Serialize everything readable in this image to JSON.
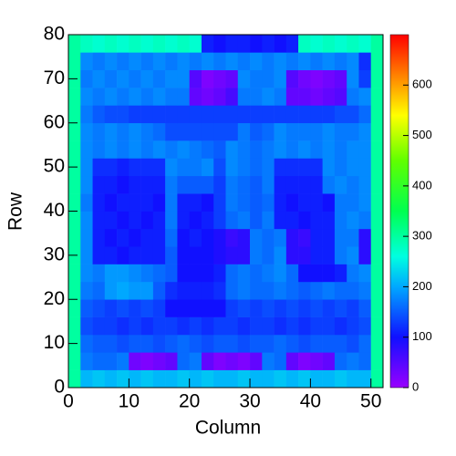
{
  "chart_data": {
    "type": "heatmap",
    "x_label": "Column",
    "y_label": "Row",
    "xbins": [
      0,
      2,
      4,
      6,
      8,
      10,
      12,
      14,
      16,
      18,
      20,
      22,
      24,
      26,
      28,
      30,
      32,
      34,
      36,
      38,
      40,
      42,
      44,
      46,
      48,
      50,
      52
    ],
    "ybins": [
      0,
      4,
      8,
      12,
      16,
      20,
      24,
      28,
      32,
      36,
      40,
      44,
      48,
      52,
      56,
      60,
      64,
      68,
      72,
      76,
      80
    ],
    "xlim": [
      0,
      52
    ],
    "ylim": [
      0,
      80
    ],
    "xticks": [
      0,
      10,
      20,
      30,
      40,
      50
    ],
    "yticks": [
      0,
      10,
      20,
      30,
      40,
      50,
      60,
      70,
      80
    ],
    "zlim": [
      0,
      700
    ],
    "zticks": [
      0,
      100,
      200,
      300,
      400,
      500,
      600
    ],
    "colorscale": [
      [
        0,
        "#9900ff"
      ],
      [
        100,
        "#1010ff"
      ],
      [
        200,
        "#00a8ff"
      ],
      [
        260,
        "#00ffe0"
      ],
      [
        350,
        "#00ff50"
      ],
      [
        450,
        "#60ff00"
      ],
      [
        540,
        "#ffff00"
      ],
      [
        620,
        "#ff8000"
      ],
      [
        700,
        "#ff0000"
      ]
    ],
    "values": [
      [
        300,
        210,
        220,
        210,
        220,
        210,
        220,
        210,
        210,
        220,
        210,
        220,
        210,
        210,
        220,
        210,
        210,
        220,
        210,
        220,
        210,
        210,
        220,
        210,
        210,
        300
      ],
      [
        300,
        170,
        160,
        160,
        170,
        30,
        20,
        30,
        40,
        160,
        170,
        40,
        20,
        30,
        20,
        40,
        170,
        160,
        40,
        20,
        30,
        40,
        160,
        170,
        160,
        300
      ],
      [
        300,
        160,
        150,
        150,
        140,
        150,
        150,
        140,
        150,
        160,
        150,
        140,
        150,
        150,
        140,
        150,
        150,
        160,
        150,
        140,
        150,
        150,
        150,
        140,
        160,
        300
      ],
      [
        300,
        140,
        130,
        130,
        120,
        130,
        120,
        130,
        130,
        120,
        130,
        120,
        130,
        130,
        120,
        130,
        130,
        120,
        130,
        120,
        130,
        130,
        120,
        130,
        140,
        300
      ],
      [
        300,
        150,
        140,
        130,
        140,
        130,
        140,
        130,
        100,
        100,
        100,
        100,
        100,
        130,
        140,
        130,
        140,
        130,
        140,
        130,
        140,
        130,
        140,
        130,
        150,
        300
      ],
      [
        300,
        170,
        160,
        190,
        200,
        190,
        190,
        150,
        120,
        110,
        110,
        110,
        120,
        160,
        170,
        160,
        160,
        170,
        160,
        150,
        160,
        170,
        160,
        160,
        170,
        300
      ],
      [
        300,
        180,
        170,
        190,
        190,
        180,
        170,
        160,
        150,
        100,
        100,
        100,
        110,
        160,
        170,
        160,
        170,
        180,
        160,
        100,
        100,
        100,
        110,
        170,
        180,
        300
      ],
      [
        300,
        180,
        110,
        110,
        100,
        110,
        110,
        110,
        150,
        100,
        100,
        100,
        90,
        80,
        80,
        170,
        160,
        180,
        80,
        80,
        110,
        110,
        170,
        180,
        80,
        300
      ],
      [
        300,
        180,
        110,
        100,
        110,
        100,
        110,
        110,
        160,
        100,
        110,
        100,
        90,
        70,
        80,
        170,
        160,
        170,
        80,
        70,
        110,
        110,
        170,
        170,
        80,
        300
      ],
      [
        300,
        180,
        110,
        110,
        100,
        110,
        100,
        110,
        170,
        110,
        100,
        110,
        130,
        160,
        170,
        150,
        170,
        110,
        110,
        100,
        110,
        110,
        170,
        180,
        170,
        300
      ],
      [
        300,
        170,
        110,
        100,
        110,
        110,
        110,
        100,
        170,
        110,
        110,
        100,
        130,
        170,
        160,
        150,
        160,
        110,
        100,
        110,
        110,
        100,
        170,
        170,
        180,
        300
      ],
      [
        300,
        180,
        110,
        110,
        100,
        110,
        110,
        110,
        170,
        150,
        150,
        150,
        130,
        170,
        160,
        150,
        170,
        110,
        110,
        110,
        110,
        170,
        180,
        170,
        180,
        300
      ],
      [
        300,
        180,
        120,
        120,
        110,
        120,
        120,
        120,
        180,
        170,
        170,
        180,
        140,
        180,
        170,
        160,
        170,
        120,
        120,
        120,
        120,
        180,
        170,
        180,
        180,
        300
      ],
      [
        300,
        180,
        170,
        180,
        170,
        180,
        170,
        180,
        170,
        180,
        170,
        160,
        150,
        180,
        170,
        160,
        170,
        180,
        170,
        180,
        170,
        180,
        170,
        180,
        180,
        300
      ],
      [
        300,
        180,
        170,
        180,
        170,
        180,
        170,
        160,
        140,
        140,
        140,
        140,
        140,
        140,
        170,
        150,
        160,
        180,
        170,
        170,
        170,
        180,
        170,
        170,
        180,
        300
      ],
      [
        300,
        170,
        150,
        140,
        140,
        130,
        130,
        130,
        130,
        130,
        130,
        130,
        130,
        130,
        130,
        130,
        130,
        130,
        130,
        130,
        130,
        130,
        140,
        140,
        160,
        300
      ],
      [
        300,
        180,
        170,
        180,
        170,
        180,
        170,
        180,
        170,
        170,
        40,
        30,
        40,
        60,
        170,
        170,
        180,
        170,
        40,
        40,
        30,
        40,
        50,
        170,
        180,
        300
      ],
      [
        300,
        170,
        180,
        170,
        180,
        170,
        180,
        170,
        180,
        180,
        50,
        20,
        30,
        40,
        180,
        170,
        170,
        180,
        50,
        30,
        20,
        30,
        40,
        180,
        130,
        300
      ],
      [
        300,
        180,
        170,
        180,
        170,
        180,
        170,
        180,
        170,
        180,
        170,
        180,
        170,
        180,
        170,
        180,
        170,
        180,
        170,
        180,
        170,
        180,
        170,
        180,
        120,
        300
      ],
      [
        300,
        280,
        270,
        280,
        270,
        280,
        270,
        280,
        270,
        280,
        270,
        110,
        100,
        110,
        110,
        100,
        110,
        100,
        110,
        280,
        270,
        280,
        270,
        280,
        270,
        300
      ]
    ]
  }
}
